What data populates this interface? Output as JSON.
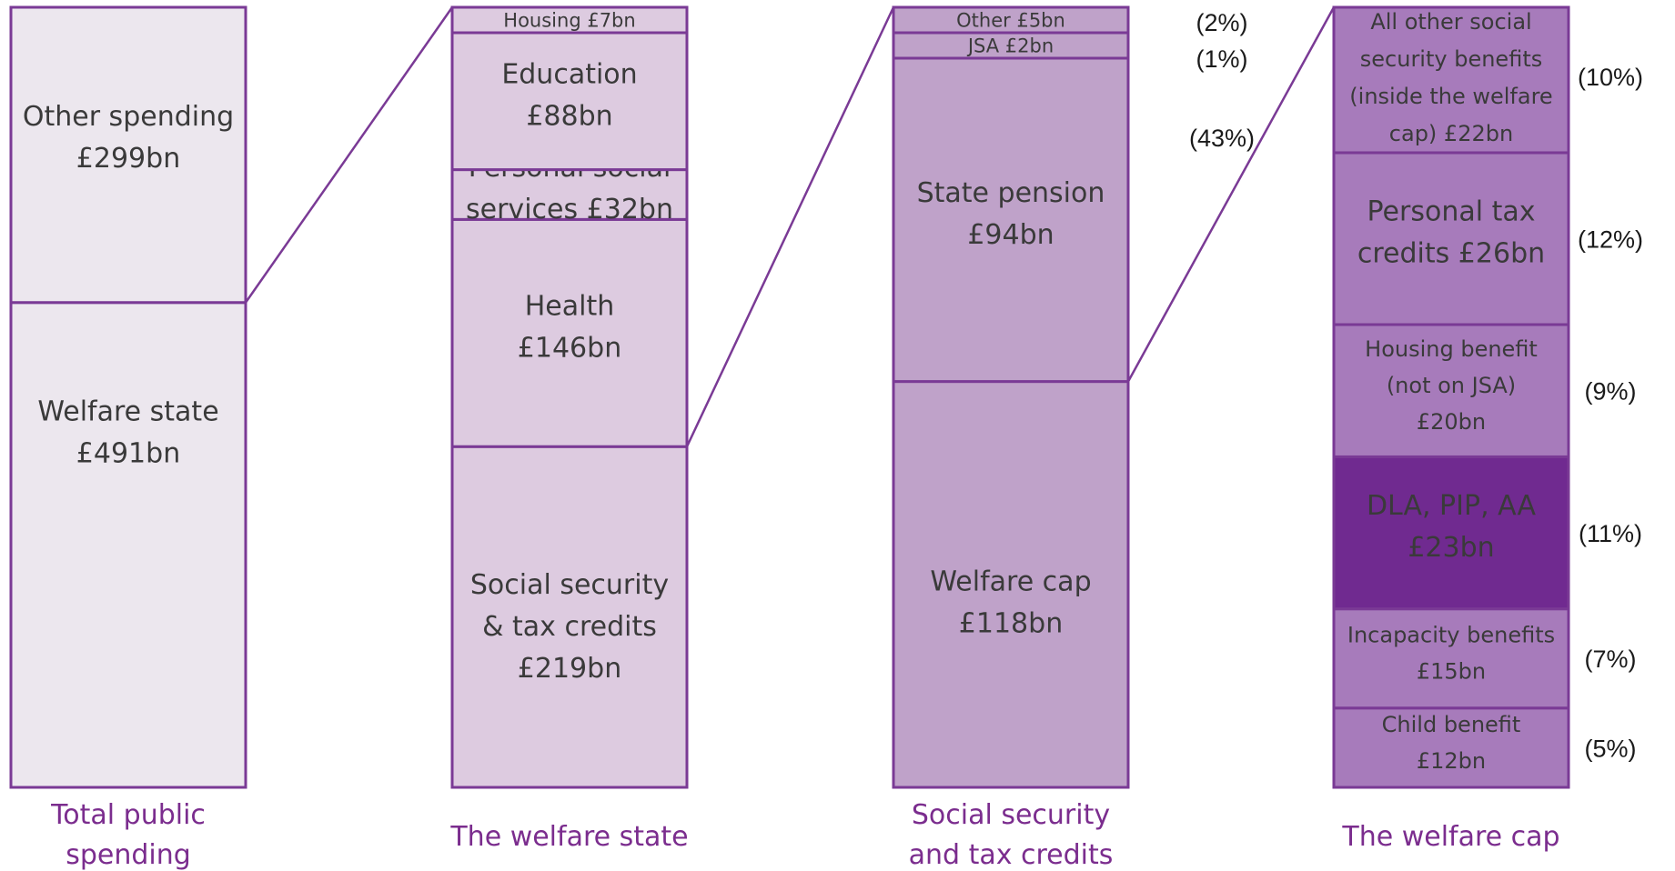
{
  "chart_data": {
    "type": "bar",
    "stacked": true,
    "unit": "£bn",
    "colors": {
      "border": "#7a3a95",
      "connector": "#7a3a95",
      "category_label": "#7b2d8e",
      "total_fill": "#ece7ee",
      "welfare_state_fill": "#ddcbe0",
      "social_security_fill": "#bfa2c9",
      "welfare_cap_fill": "#a77bbb",
      "highlight_fill": "#702a90",
      "highlight_text": "#ffffff"
    },
    "columns": [
      {
        "name": "Total public spending",
        "label_lines": [
          "Total public",
          "spending"
        ],
        "segments": [
          {
            "name": "Welfare state",
            "value": 491,
            "label_lines": [
              "Welfare state",
              "£491bn"
            ]
          },
          {
            "name": "Other spending",
            "value": 299,
            "label_lines": [
              "Other spending",
              "£299bn"
            ]
          }
        ]
      },
      {
        "name": "The welfare state",
        "label_lines": [
          "The welfare state"
        ],
        "segments": [
          {
            "name": "Social security & tax credits",
            "value": 219,
            "label_lines": [
              "Social security",
              "& tax credits",
              "£219bn"
            ]
          },
          {
            "name": "Health",
            "value": 146,
            "label_lines": [
              "Health",
              "£146bn"
            ]
          },
          {
            "name": "Personal social services",
            "value": 32,
            "label_lines": [
              "Personal social",
              "services £32bn"
            ]
          },
          {
            "name": "Education",
            "value": 88,
            "label_lines": [
              "Education",
              "£88bn"
            ]
          },
          {
            "name": "Housing",
            "value": 7,
            "label_lines": [
              "Housing £7bn"
            ]
          }
        ]
      },
      {
        "name": "Social security and tax credits",
        "label_lines": [
          "Social security",
          "and tax credits"
        ],
        "segments": [
          {
            "name": "Welfare cap",
            "value": 118,
            "label_lines": [
              "Welfare cap",
              "£118bn"
            ]
          },
          {
            "name": "State pension",
            "value": 94,
            "label_lines": [
              "State pension",
              "£94bn"
            ],
            "pct": "(43%)"
          },
          {
            "name": "JSA",
            "value": 2,
            "label_lines": [
              "JSA £2bn"
            ],
            "pct": "(1%)"
          },
          {
            "name": "Other",
            "value": 5,
            "label_lines": [
              "Other £5bn"
            ],
            "pct": "(2%)"
          }
        ]
      },
      {
        "name": "The welfare cap",
        "label_lines": [
          "The welfare cap"
        ],
        "segments": [
          {
            "name": "Child benefit",
            "value": 12,
            "label_lines": [
              "Child benefit",
              "£12bn"
            ],
            "pct": "(5%)"
          },
          {
            "name": "Incapacity benefits",
            "value": 15,
            "label_lines": [
              "Incapacity benefits",
              "£15bn"
            ],
            "pct": "(7%)"
          },
          {
            "name": "DLA, PIP, AA",
            "value": 23,
            "label_lines": [
              "DLA, PIP, AA",
              "£23bn"
            ],
            "pct": "(11%)",
            "highlight": true
          },
          {
            "name": "Housing benefit (not on JSA)",
            "value": 20,
            "label_lines": [
              "Housing benefit",
              "(not on JSA)",
              "£20bn"
            ],
            "pct": "(9%)"
          },
          {
            "name": "Personal tax credits",
            "value": 26,
            "label_lines": [
              "Personal tax",
              "credits £26bn"
            ],
            "pct": "(12%)"
          },
          {
            "name": "All other social security benefits (inside the welfare cap)",
            "value": 22,
            "label_lines": [
              "All other social",
              "security benefits",
              "(inside the welfare",
              "cap) £22bn"
            ],
            "pct": "(10%)"
          }
        ]
      }
    ],
    "connectors": [
      {
        "from_column": 0,
        "from_segment": 0,
        "to_column": 1
      },
      {
        "from_column": 1,
        "from_segment": 0,
        "to_column": 2
      },
      {
        "from_column": 2,
        "from_segment": 0,
        "to_column": 3
      }
    ]
  }
}
